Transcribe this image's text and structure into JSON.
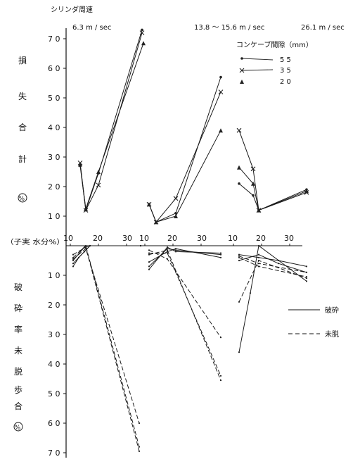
{
  "chart_data": {
    "type": "line",
    "header": {
      "cylinder_speed_label": "シリンダ周速",
      "speeds": [
        "6.3 m / sec",
        "13.8 ～ 15.6 m / sec",
        "26.1 m / sec"
      ]
    },
    "ylabel_top": [
      "損",
      "失",
      "合",
      "計",
      "%"
    ],
    "ylabel_bottom": [
      "破",
      "砕",
      "率",
      "未",
      "脱",
      "歩",
      "合",
      "%"
    ],
    "xlabel": "（子実 水分%）",
    "y_top_ticks": [
      "1 0",
      "2 0",
      "3 0",
      "4 0",
      "5 0",
      "6 0",
      "7 0"
    ],
    "y_bottom_ticks": [
      "1 0",
      "2 0",
      "3 0",
      "4 0",
      "5 0",
      "6 0",
      "7 0"
    ],
    "x_ticks": [
      "10",
      "20",
      "30"
    ],
    "concave_legend": {
      "title": "コンケーブ間隙（mm）",
      "items": [
        {
          "label": "5 5",
          "marker": "dot"
        },
        {
          "label": "3 5",
          "marker": "cross"
        },
        {
          "label": "2 0",
          "marker": "triangle"
        }
      ]
    },
    "line_legend": [
      {
        "label": "破砕",
        "style": "solid"
      },
      {
        "label": "未脱",
        "style": "dashed"
      }
    ],
    "panels": [
      {
        "speed": "6.3 m / sec",
        "loss": [
          {
            "gap": "55",
            "points": [
              [
                13.5,
                27.0
              ],
              [
                15.5,
                12.0
              ],
              [
                20.0,
                24.5
              ],
              [
                35.5,
                73.0
              ]
            ]
          },
          {
            "gap": "35",
            "points": [
              [
                13.5,
                28.0
              ],
              [
                15.5,
                12.0
              ],
              [
                20.0,
                20.5
              ],
              [
                35.5,
                72.0
              ]
            ]
          },
          {
            "gap": "20",
            "points": [
              [
                13.5,
                27.5
              ],
              [
                15.5,
                12.5
              ],
              [
                20.0,
                25.0
              ],
              [
                36.0,
                68.5
              ]
            ]
          }
        ],
        "crushing": [
          {
            "gap": "55",
            "points": [
              [
                11.0,
                7.0
              ],
              [
                13.0,
                4.0
              ],
              [
                17.0,
                0.0
              ],
              [
                35.0,
                0.0
              ]
            ]
          },
          {
            "gap": "35",
            "points": [
              [
                11.0,
                6.0
              ],
              [
                15.0,
                2.0
              ],
              [
                17.0,
                0.0
              ],
              [
                35.0,
                0.0
              ]
            ]
          },
          {
            "gap": "20",
            "points": [
              [
                11.0,
                5.0
              ],
              [
                15.0,
                0.5
              ],
              [
                17.0,
                0.0
              ],
              [
                35.0,
                0.0
              ]
            ]
          }
        ],
        "unthreshed": [
          {
            "gap": "55",
            "points": [
              [
                11.0,
                3.0
              ],
              [
                15.5,
                0.5
              ],
              [
                34.5,
                69.5
              ]
            ]
          },
          {
            "gap": "35",
            "points": [
              [
                11.0,
                4.0
              ],
              [
                15.5,
                0.0
              ],
              [
                34.5,
                68.0
              ]
            ]
          },
          {
            "gap": "20",
            "points": [
              [
                11.0,
                4.5
              ],
              [
                15.5,
                1.0
              ],
              [
                34.5,
                60.0
              ]
            ]
          }
        ]
      },
      {
        "speed": "13.8 ～ 15.6 m / sec",
        "loss": [
          {
            "gap": "55",
            "points": [
              [
                11.5,
                14.0
              ],
              [
                14.0,
                8.0
              ],
              [
                21.0,
                11.0
              ],
              [
                37.0,
                57.0
              ]
            ]
          },
          {
            "gap": "35",
            "points": [
              [
                11.5,
                14.0
              ],
              [
                14.0,
                8.0
              ],
              [
                21.0,
                16.0
              ],
              [
                37.0,
                52.0
              ]
            ]
          },
          {
            "gap": "20",
            "points": [
              [
                11.5,
                14.0
              ],
              [
                14.0,
                8.0
              ],
              [
                21.0,
                10.0
              ],
              [
                37.0,
                39.0
              ]
            ]
          }
        ],
        "crushing": [
          {
            "gap": "55",
            "points": [
              [
                11.5,
                7.0
              ],
              [
                18.0,
                1.0
              ],
              [
                21.0,
                1.5
              ],
              [
                37.0,
                3.0
              ]
            ]
          },
          {
            "gap": "35",
            "points": [
              [
                11.5,
                5.5
              ],
              [
                18.0,
                2.0
              ],
              [
                21.0,
                1.0
              ],
              [
                37.0,
                4.0
              ]
            ]
          },
          {
            "gap": "20",
            "points": [
              [
                11.5,
                8.0
              ],
              [
                18.0,
                0.5
              ],
              [
                21.0,
                2.0
              ],
              [
                37.0,
                2.5
              ]
            ]
          }
        ],
        "unthreshed": [
          {
            "gap": "55",
            "points": [
              [
                11.5,
                3.0
              ],
              [
                18.0,
                1.5
              ],
              [
                37.0,
                45.5
              ]
            ]
          },
          {
            "gap": "35",
            "points": [
              [
                11.5,
                2.5
              ],
              [
                18.0,
                2.5
              ],
              [
                37.0,
                44.0
              ]
            ]
          },
          {
            "gap": "20",
            "points": [
              [
                11.5,
                1.5
              ],
              [
                18.0,
                4.5
              ],
              [
                37.0,
                31.0
              ]
            ]
          }
        ]
      },
      {
        "speed": "26.1 m / sec",
        "loss": [
          {
            "gap": "55",
            "points": [
              [
                12.0,
                21.0
              ],
              [
                17.0,
                17.0
              ],
              [
                19.0,
                12.0
              ],
              [
                36.0,
                19.0
              ]
            ]
          },
          {
            "gap": "35",
            "points": [
              [
                12.0,
                39.0
              ],
              [
                17.0,
                26.0
              ],
              [
                19.0,
                12.0
              ],
              [
                36.0,
                18.0
              ]
            ]
          },
          {
            "gap": "20",
            "points": [
              [
                12.0,
                26.5
              ],
              [
                17.0,
                21.0
              ],
              [
                19.0,
                12.0
              ],
              [
                36.0,
                18.5
              ]
            ]
          }
        ],
        "crushing": [
          {
            "gap": "55",
            "points": [
              [
                12.0,
                3.0
              ],
              [
                19.0,
                4.0
              ],
              [
                26.0,
                5.0
              ],
              [
                36.0,
                7.0
              ]
            ]
          },
          {
            "gap": "35",
            "points": [
              [
                12.0,
                5.0
              ],
              [
                19.0,
                3.0
              ],
              [
                26.0,
                6.0
              ],
              [
                36.0,
                9.0
              ]
            ]
          },
          {
            "gap": "20",
            "points": [
              [
                12.0,
                36.0
              ],
              [
                16.0,
                16.0
              ],
              [
                19.0,
                0.0
              ],
              [
                36.0,
                12.0
              ]
            ]
          }
        ],
        "unthreshed": [
          {
            "gap": "55",
            "points": [
              [
                12.0,
                3.5
              ],
              [
                19.0,
                6.0
              ],
              [
                36.0,
                9.0
              ]
            ]
          },
          {
            "gap": "35",
            "points": [
              [
                12.0,
                4.0
              ],
              [
                19.0,
                7.0
              ],
              [
                36.0,
                10.5
              ]
            ]
          },
          {
            "gap": "20",
            "points": [
              [
                12.0,
                19.0
              ],
              [
                19.0,
                5.0
              ],
              [
                36.0,
                11.0
              ]
            ]
          }
        ]
      }
    ]
  }
}
